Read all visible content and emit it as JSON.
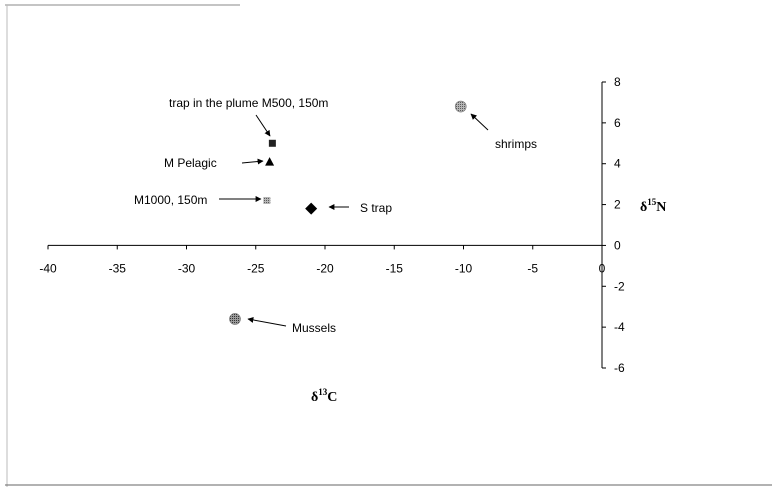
{
  "chart_data": {
    "type": "scatter",
    "title": "",
    "xlabel": "δ13C",
    "ylabel": "δ15N",
    "xlim": [
      -40,
      0
    ],
    "ylim": [
      -6,
      8
    ],
    "xticks": [
      -40,
      -35,
      -30,
      -25,
      -20,
      -15,
      -10,
      -5,
      0
    ],
    "yticks": [
      -6,
      -4,
      -2,
      0,
      2,
      4,
      6,
      8
    ],
    "grid": false,
    "legend": "none",
    "points": [
      {
        "label": "trap in the plume M500, 150m",
        "x": -23.8,
        "y": 5.0,
        "marker": "square",
        "color": "#222222"
      },
      {
        "label": "M Pelagic",
        "x": -24.0,
        "y": 4.1,
        "marker": "triangle",
        "color": "#000000"
      },
      {
        "label": "M1000, 150m",
        "x": -24.2,
        "y": 2.2,
        "marker": "square-hatched",
        "color": "#9a9a9a"
      },
      {
        "label": "S trap",
        "x": -21.0,
        "y": 1.8,
        "marker": "diamond",
        "color": "#000000"
      },
      {
        "label": "shrimps",
        "x": -10.2,
        "y": 6.8,
        "marker": "circle-hatched",
        "color": "#8a8a8a"
      },
      {
        "label": "Mussels",
        "x": -26.5,
        "y": -3.6,
        "marker": "circle-hatched",
        "color": "#6a6a6a"
      }
    ]
  }
}
